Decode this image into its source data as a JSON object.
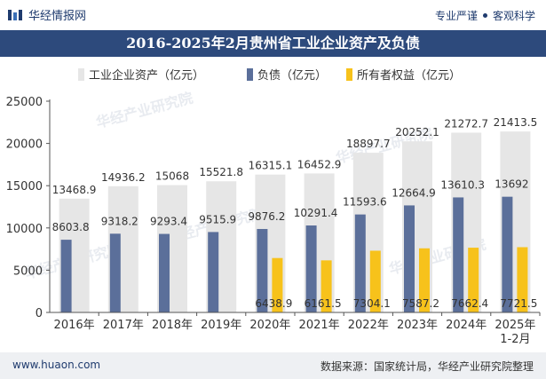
{
  "header": {
    "brand": "华经情报网",
    "tagline_left": "专业严谨",
    "tagline_right": "客观科学"
  },
  "title": "2016-2025年2月贵州省工业企业资产及负债",
  "footer": {
    "website": "www.huaon.com",
    "source": "数据来源：国家统计局，华经产业研究院整理"
  },
  "watermark": "华经产业研究院",
  "colors": {
    "assets": "#e6e6e6",
    "liabilities": "#5b6f9a",
    "equity": "#f7c21b",
    "title_bg": "#2d4a7c"
  },
  "chart_data": {
    "type": "bar",
    "categories": [
      "2016年",
      "2017年",
      "2018年",
      "2019年",
      "2020年",
      "2021年",
      "2022年",
      "2023年",
      "2024年",
      "2025年\n1-2月"
    ],
    "series": [
      {
        "name": "工业企业资产（亿元）",
        "values": [
          13468.9,
          14936.2,
          15068,
          15521.8,
          16315.1,
          16452.9,
          18897.7,
          20252.1,
          21272.7,
          21413.5
        ],
        "labels": [
          "13468.9",
          "14936.2",
          "15068",
          "15521.8",
          "16315.1",
          "16452.9",
          "18897.7",
          "20252.1",
          "21272.7",
          "21413.5"
        ]
      },
      {
        "name": "负债（亿元）",
        "values": [
          8603.8,
          9318.2,
          9293.4,
          9515.9,
          9876.2,
          10291.4,
          11593.6,
          12664.9,
          13610.3,
          13692
        ],
        "labels": [
          "8603.8",
          "9318.2",
          "9293.4",
          "9515.9",
          "9876.2",
          "10291.4",
          "11593.6",
          "12664.9",
          "13610.3",
          "13692"
        ]
      },
      {
        "name": "所有者权益（亿元）",
        "values": [
          null,
          null,
          null,
          null,
          6438.9,
          6161.5,
          7304.1,
          7587.2,
          7662.4,
          7721.5
        ],
        "labels": [
          "",
          "",
          "",
          "",
          "6438.9",
          "6161.5",
          "7304.1",
          "7587.2",
          "7662.4",
          "7721.5"
        ]
      }
    ],
    "yticks": [
      "0",
      "5000",
      "10000",
      "15000",
      "20000",
      "25000"
    ],
    "ylim": [
      0,
      25000
    ],
    "legend": "top-center",
    "grid": false
  }
}
